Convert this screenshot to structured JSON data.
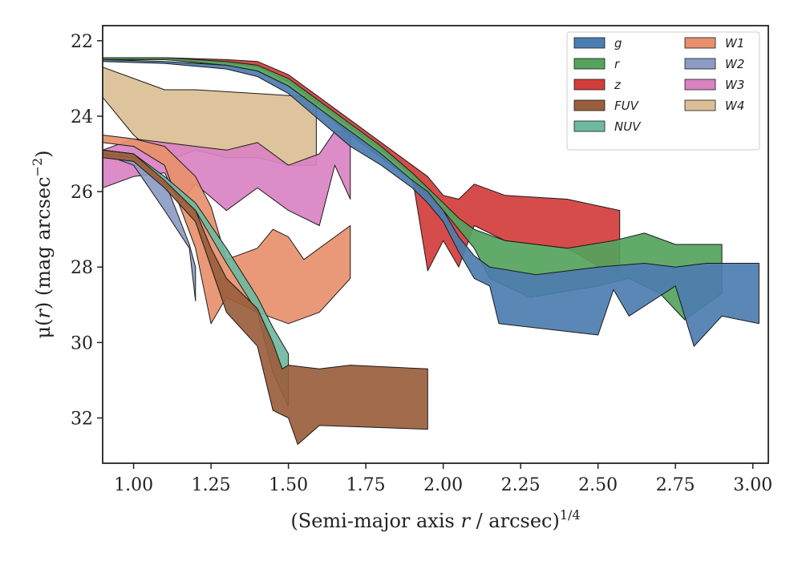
{
  "chart_data": {
    "type": "area",
    "title": "",
    "xlabel_prefix": "(Semi-major axis ",
    "xlabel_var": "r",
    "xlabel_suffix": " / arcsec)",
    "xlabel_sup": "1/4",
    "ylabel_prefix": "μ(",
    "ylabel_var": "r",
    "ylabel_suffix": ") (mag arcsec",
    "ylabel_sup": "−2",
    "ylabel_close": ")",
    "xlim": [
      0.9,
      3.05
    ],
    "ylim": [
      33.2,
      21.6
    ],
    "y_inverted": true,
    "xticks": [
      1.0,
      1.25,
      1.5,
      1.75,
      2.0,
      2.25,
      2.5,
      2.75,
      3.0
    ],
    "xtick_labels": [
      "1.00",
      "1.25",
      "1.50",
      "1.75",
      "2.00",
      "2.25",
      "2.50",
      "2.75",
      "3.00"
    ],
    "yticks": [
      22,
      24,
      26,
      28,
      30,
      32
    ],
    "ytick_labels": [
      "22",
      "24",
      "26",
      "28",
      "30",
      "32"
    ],
    "grid": false,
    "legend_position": "top-right",
    "series": [
      {
        "name": "g",
        "color": "#4c7db0",
        "upper": [
          [
            0.9,
            22.5
          ],
          [
            1.1,
            22.55
          ],
          [
            1.3,
            22.65
          ],
          [
            1.4,
            22.8
          ],
          [
            1.5,
            23.2
          ],
          [
            1.6,
            23.8
          ],
          [
            1.7,
            24.4
          ],
          [
            1.8,
            25.0
          ],
          [
            1.9,
            25.7
          ],
          [
            1.95,
            26.0
          ],
          [
            2.0,
            26.5
          ],
          [
            2.05,
            27.2
          ],
          [
            2.1,
            27.7
          ],
          [
            2.15,
            28.0
          ],
          [
            2.3,
            28.2
          ],
          [
            2.5,
            28.0
          ],
          [
            2.65,
            27.9
          ],
          [
            2.75,
            28.0
          ],
          [
            2.85,
            27.9
          ],
          [
            3.02,
            27.9
          ]
        ],
        "lower": [
          [
            0.9,
            22.55
          ],
          [
            1.1,
            22.6
          ],
          [
            1.3,
            22.75
          ],
          [
            1.4,
            22.95
          ],
          [
            1.5,
            23.4
          ],
          [
            1.6,
            24.1
          ],
          [
            1.7,
            24.8
          ],
          [
            1.8,
            25.3
          ],
          [
            1.9,
            25.9
          ],
          [
            1.95,
            26.3
          ],
          [
            2.0,
            26.8
          ],
          [
            2.05,
            27.6
          ],
          [
            2.1,
            28.3
          ],
          [
            2.15,
            28.5
          ],
          [
            2.18,
            29.5
          ],
          [
            2.5,
            29.8
          ],
          [
            2.55,
            28.6
          ],
          [
            2.6,
            29.3
          ],
          [
            2.75,
            28.5
          ],
          [
            2.81,
            30.1
          ],
          [
            2.9,
            29.3
          ],
          [
            3.02,
            29.5
          ]
        ]
      },
      {
        "name": "r",
        "color": "#55a35c",
        "upper": [
          [
            0.9,
            22.45
          ],
          [
            1.1,
            22.45
          ],
          [
            1.3,
            22.55
          ],
          [
            1.4,
            22.65
          ],
          [
            1.5,
            23.0
          ],
          [
            1.6,
            23.6
          ],
          [
            1.7,
            24.2
          ],
          [
            1.8,
            24.8
          ],
          [
            1.9,
            25.5
          ],
          [
            1.95,
            25.9
          ],
          [
            2.0,
            26.3
          ],
          [
            2.05,
            26.7
          ],
          [
            2.1,
            27.0
          ],
          [
            2.2,
            27.3
          ],
          [
            2.4,
            27.5
          ],
          [
            2.55,
            27.3
          ],
          [
            2.65,
            27.1
          ],
          [
            2.75,
            27.4
          ],
          [
            2.85,
            27.4
          ],
          [
            2.9,
            27.4
          ]
        ],
        "lower": [
          [
            0.9,
            22.5
          ],
          [
            1.1,
            22.5
          ],
          [
            1.3,
            22.65
          ],
          [
            1.4,
            22.8
          ],
          [
            1.5,
            23.2
          ],
          [
            1.6,
            23.8
          ],
          [
            1.7,
            24.5
          ],
          [
            1.8,
            25.1
          ],
          [
            1.9,
            25.7
          ],
          [
            1.95,
            26.1
          ],
          [
            2.0,
            26.5
          ],
          [
            2.05,
            27.0
          ],
          [
            2.1,
            27.5
          ],
          [
            2.15,
            28.3
          ],
          [
            2.28,
            28.8
          ],
          [
            2.5,
            28.5
          ],
          [
            2.6,
            28.3
          ],
          [
            2.7,
            28.7
          ],
          [
            2.78,
            29.4
          ],
          [
            2.9,
            28.7
          ]
        ]
      },
      {
        "name": "z",
        "color": "#d23d3b",
        "upper": [
          [
            0.9,
            22.45
          ],
          [
            1.1,
            22.45
          ],
          [
            1.3,
            22.5
          ],
          [
            1.4,
            22.55
          ],
          [
            1.5,
            22.9
          ],
          [
            1.6,
            23.5
          ],
          [
            1.7,
            24.1
          ],
          [
            1.8,
            24.7
          ],
          [
            1.9,
            25.3
          ],
          [
            1.95,
            25.6
          ],
          [
            2.0,
            26.1
          ],
          [
            2.05,
            26.2
          ],
          [
            2.1,
            25.8
          ],
          [
            2.2,
            26.1
          ],
          [
            2.4,
            26.2
          ],
          [
            2.57,
            26.5
          ]
        ],
        "lower": [
          [
            0.9,
            22.5
          ],
          [
            1.1,
            22.5
          ],
          [
            1.3,
            22.6
          ],
          [
            1.4,
            22.7
          ],
          [
            1.5,
            23.1
          ],
          [
            1.6,
            23.7
          ],
          [
            1.7,
            24.3
          ],
          [
            1.8,
            24.9
          ],
          [
            1.9,
            25.6
          ],
          [
            1.95,
            28.1
          ],
          [
            2.0,
            27.3
          ],
          [
            2.05,
            28.0
          ],
          [
            2.1,
            26.9
          ],
          [
            2.2,
            27.3
          ],
          [
            2.4,
            27.5
          ],
          [
            2.57,
            28.3
          ]
        ]
      },
      {
        "name": "FUV",
        "color": "#9a5e3c",
        "upper": [
          [
            0.9,
            24.9
          ],
          [
            1.0,
            25.0
          ],
          [
            1.1,
            25.7
          ],
          [
            1.2,
            26.5
          ],
          [
            1.25,
            27.5
          ],
          [
            1.3,
            28.3
          ],
          [
            1.4,
            29.1
          ],
          [
            1.45,
            30.0
          ],
          [
            1.48,
            30.7
          ],
          [
            1.5,
            30.6
          ],
          [
            1.6,
            30.7
          ],
          [
            1.7,
            30.6
          ],
          [
            1.95,
            30.7
          ]
        ],
        "lower": [
          [
            0.9,
            25.1
          ],
          [
            1.0,
            25.2
          ],
          [
            1.1,
            25.9
          ],
          [
            1.2,
            26.8
          ],
          [
            1.25,
            28.0
          ],
          [
            1.3,
            29.2
          ],
          [
            1.4,
            30.1
          ],
          [
            1.45,
            31.8
          ],
          [
            1.5,
            32.0
          ],
          [
            1.53,
            32.7
          ],
          [
            1.6,
            32.2
          ],
          [
            1.95,
            32.3
          ]
        ]
      },
      {
        "name": "NUV",
        "color": "#6fb9a0",
        "upper": [
          [
            0.9,
            24.9
          ],
          [
            1.0,
            25.0
          ],
          [
            1.1,
            25.6
          ],
          [
            1.2,
            26.3
          ],
          [
            1.25,
            26.9
          ],
          [
            1.3,
            27.5
          ],
          [
            1.4,
            28.8
          ],
          [
            1.45,
            29.6
          ],
          [
            1.5,
            30.3
          ]
        ],
        "lower": [
          [
            0.9,
            25.0
          ],
          [
            1.0,
            25.1
          ],
          [
            1.1,
            25.8
          ],
          [
            1.2,
            26.5
          ],
          [
            1.25,
            27.2
          ],
          [
            1.3,
            27.9
          ],
          [
            1.4,
            29.2
          ],
          [
            1.45,
            30.8
          ],
          [
            1.5,
            31.7
          ]
        ]
      },
      {
        "name": "W1",
        "color": "#e8906d",
        "upper": [
          [
            0.9,
            24.5
          ],
          [
            1.0,
            24.6
          ],
          [
            1.1,
            24.8
          ],
          [
            1.2,
            25.6
          ],
          [
            1.25,
            26.4
          ],
          [
            1.3,
            27.8
          ],
          [
            1.4,
            27.5
          ],
          [
            1.45,
            27.0
          ],
          [
            1.5,
            27.2
          ],
          [
            1.55,
            27.8
          ],
          [
            1.7,
            26.9
          ]
        ],
        "lower": [
          [
            0.9,
            24.7
          ],
          [
            1.0,
            24.8
          ],
          [
            1.1,
            25.3
          ],
          [
            1.2,
            27.5
          ],
          [
            1.25,
            29.5
          ],
          [
            1.3,
            28.8
          ],
          [
            1.4,
            29.2
          ],
          [
            1.5,
            29.5
          ],
          [
            1.6,
            29.2
          ],
          [
            1.7,
            28.3
          ]
        ]
      },
      {
        "name": "W2",
        "color": "#8c9cc4",
        "upper": [
          [
            0.9,
            24.9
          ],
          [
            1.0,
            25.0
          ],
          [
            1.1,
            25.7
          ],
          [
            1.18,
            27.4
          ],
          [
            1.2,
            28.0
          ]
        ],
        "lower": [
          [
            0.9,
            25.0
          ],
          [
            1.0,
            25.3
          ],
          [
            1.1,
            26.5
          ],
          [
            1.18,
            27.5
          ],
          [
            1.2,
            28.9
          ]
        ]
      },
      {
        "name": "W3",
        "color": "#d982c1",
        "upper": [
          [
            0.9,
            24.9
          ],
          [
            1.0,
            24.6
          ],
          [
            1.1,
            24.7
          ],
          [
            1.2,
            24.8
          ],
          [
            1.3,
            24.9
          ],
          [
            1.4,
            24.7
          ],
          [
            1.5,
            25.3
          ],
          [
            1.6,
            25.0
          ],
          [
            1.65,
            24.4
          ],
          [
            1.7,
            24.4
          ]
        ],
        "lower": [
          [
            0.9,
            25.9
          ],
          [
            1.0,
            25.6
          ],
          [
            1.1,
            25.5
          ],
          [
            1.15,
            26.3
          ],
          [
            1.2,
            25.8
          ],
          [
            1.3,
            26.5
          ],
          [
            1.4,
            25.9
          ],
          [
            1.5,
            26.5
          ],
          [
            1.6,
            26.9
          ],
          [
            1.65,
            25.3
          ],
          [
            1.7,
            26.2
          ]
        ]
      },
      {
        "name": "W4",
        "color": "#dbbf94",
        "upper": [
          [
            0.9,
            22.7
          ],
          [
            1.0,
            23.0
          ],
          [
            1.1,
            23.3
          ],
          [
            1.2,
            23.3
          ],
          [
            1.4,
            23.4
          ],
          [
            1.59,
            23.5
          ]
        ],
        "lower": [
          [
            0.9,
            23.5
          ],
          [
            1.0,
            24.5
          ],
          [
            1.1,
            25.2
          ],
          [
            1.2,
            24.9
          ],
          [
            1.3,
            25.1
          ],
          [
            1.4,
            25.1
          ],
          [
            1.5,
            25.3
          ],
          [
            1.59,
            25.3
          ]
        ]
      }
    ]
  }
}
